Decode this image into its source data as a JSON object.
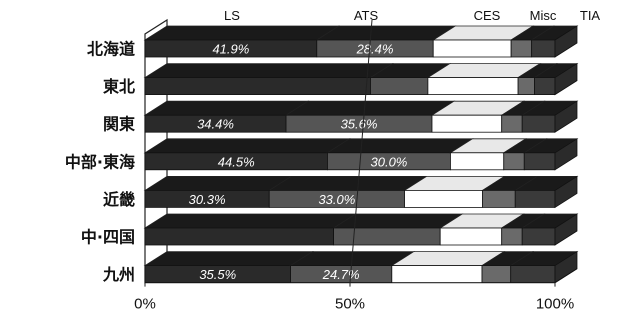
{
  "chart_data": {
    "type": "bar",
    "orientation": "horizontal",
    "stacked": true,
    "percent_stacked": true,
    "legend_position": "top",
    "categories": [
      "北海道",
      "東北",
      "関東",
      "中部·東海",
      "近畿",
      "中·四国",
      "九州"
    ],
    "series": [
      {
        "name": "LS",
        "color": "#2a2a2a",
        "values": [
          41.9,
          55.0,
          34.4,
          44.5,
          30.3,
          46.0,
          35.5
        ]
      },
      {
        "name": "ATS",
        "color": "#555555",
        "values": [
          28.4,
          14.0,
          35.6,
          30.0,
          33.0,
          26.0,
          24.7
        ]
      },
      {
        "name": "CES",
        "color": "#ffffff",
        "values": [
          19.0,
          22.0,
          17.0,
          13.0,
          19.0,
          15.0,
          22.0
        ]
      },
      {
        "name": "Misc",
        "color": "#6a6a6a",
        "values": [
          5.0,
          4.0,
          5.0,
          5.0,
          8.0,
          5.0,
          7.0
        ]
      },
      {
        "name": "TIA",
        "color": "#3a3a3a",
        "values": [
          5.7,
          5.0,
          8.0,
          7.5,
          9.7,
          8.0,
          10.8
        ]
      }
    ],
    "data_labels": [
      {
        "series": "LS",
        "category": "北海道",
        "text": "41.9%"
      },
      {
        "series": "ATS",
        "category": "北海道",
        "text": "28.4%"
      },
      {
        "series": "LS",
        "category": "関東",
        "text": "34.4%"
      },
      {
        "series": "ATS",
        "category": "関東",
        "text": "35.6%"
      },
      {
        "series": "LS",
        "category": "中部·東海",
        "text": "44.5%"
      },
      {
        "series": "ATS",
        "category": "中部·東海",
        "text": "30.0%"
      },
      {
        "series": "LS",
        "category": "近畿",
        "text": "30.3%"
      },
      {
        "series": "ATS",
        "category": "近畿",
        "text": "33.0%"
      },
      {
        "series": "LS",
        "category": "九州",
        "text": "35.5%"
      },
      {
        "series": "ATS",
        "category": "九州",
        "text": "24.7%"
      }
    ],
    "x_ticks": [
      "0%",
      "50%",
      "100%"
    ],
    "xlim": [
      0,
      100
    ],
    "grid": false
  }
}
